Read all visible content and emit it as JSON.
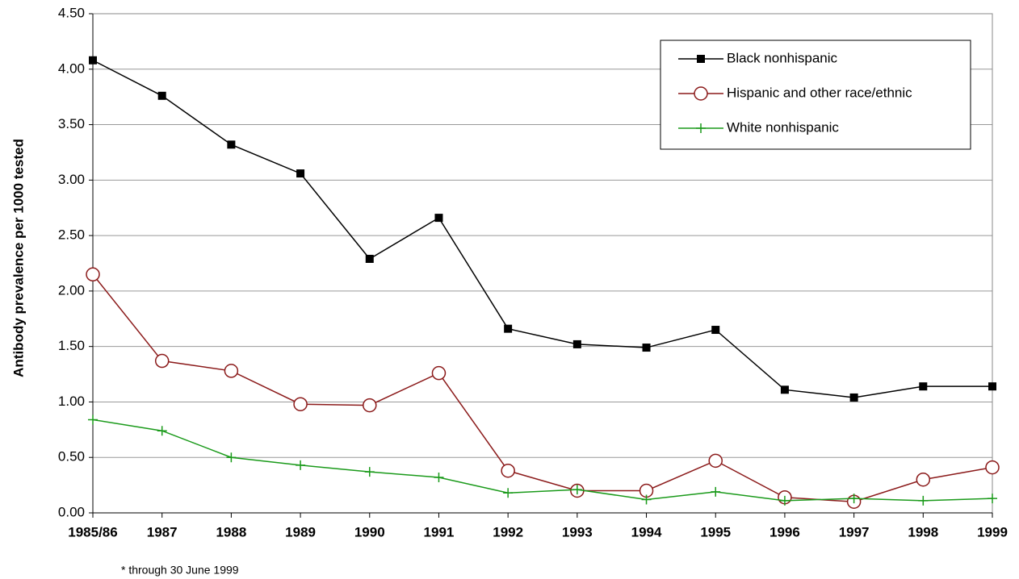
{
  "chart_data": {
    "type": "line",
    "y_label": "Antibody prevalence per 1000 tested",
    "footnote": "* through 30 June 1999",
    "categories": [
      "1985/86",
      "1987",
      "1988",
      "1989",
      "1990",
      "1991",
      "1992",
      "1993",
      "1994",
      "1995",
      "1996",
      "1997",
      "1998",
      "1999"
    ],
    "series": [
      {
        "name": "Black nonhispanic",
        "color": "#000000",
        "marker": "square",
        "values": [
          4.08,
          3.76,
          3.32,
          3.06,
          2.29,
          2.66,
          1.66,
          1.52,
          1.49,
          1.65,
          1.11,
          1.04,
          1.14,
          1.14
        ]
      },
      {
        "name": "Hispanic and other race/ethnic",
        "color": "#8b1a1a",
        "marker": "circle",
        "values": [
          2.15,
          1.37,
          1.28,
          0.98,
          0.97,
          1.26,
          0.38,
          0.2,
          0.2,
          0.47,
          0.14,
          0.1,
          0.3,
          0.41
        ]
      },
      {
        "name": "White nonhispanic",
        "color": "#1a9a1a",
        "marker": "plus",
        "values": [
          0.84,
          0.74,
          0.5,
          0.43,
          0.37,
          0.32,
          0.18,
          0.21,
          0.12,
          0.19,
          0.11,
          0.13,
          0.11,
          0.13
        ]
      }
    ],
    "ylim": [
      0,
      4.5
    ],
    "yticks": [
      {
        "value": 0,
        "label": "0.00"
      },
      {
        "value": 0.5,
        "label": "0.50"
      },
      {
        "value": 1,
        "label": "1.00"
      },
      {
        "value": 1.5,
        "label": "1.50"
      },
      {
        "value": 2,
        "label": "2.00"
      },
      {
        "value": 2.5,
        "label": "2.50"
      },
      {
        "value": 3,
        "label": "3.00"
      },
      {
        "value": 3.5,
        "label": "3.50"
      },
      {
        "value": 4,
        "label": "4.00"
      },
      {
        "value": 4.5,
        "label": "4.50"
      }
    ],
    "grid": true,
    "legend": "upper right"
  }
}
